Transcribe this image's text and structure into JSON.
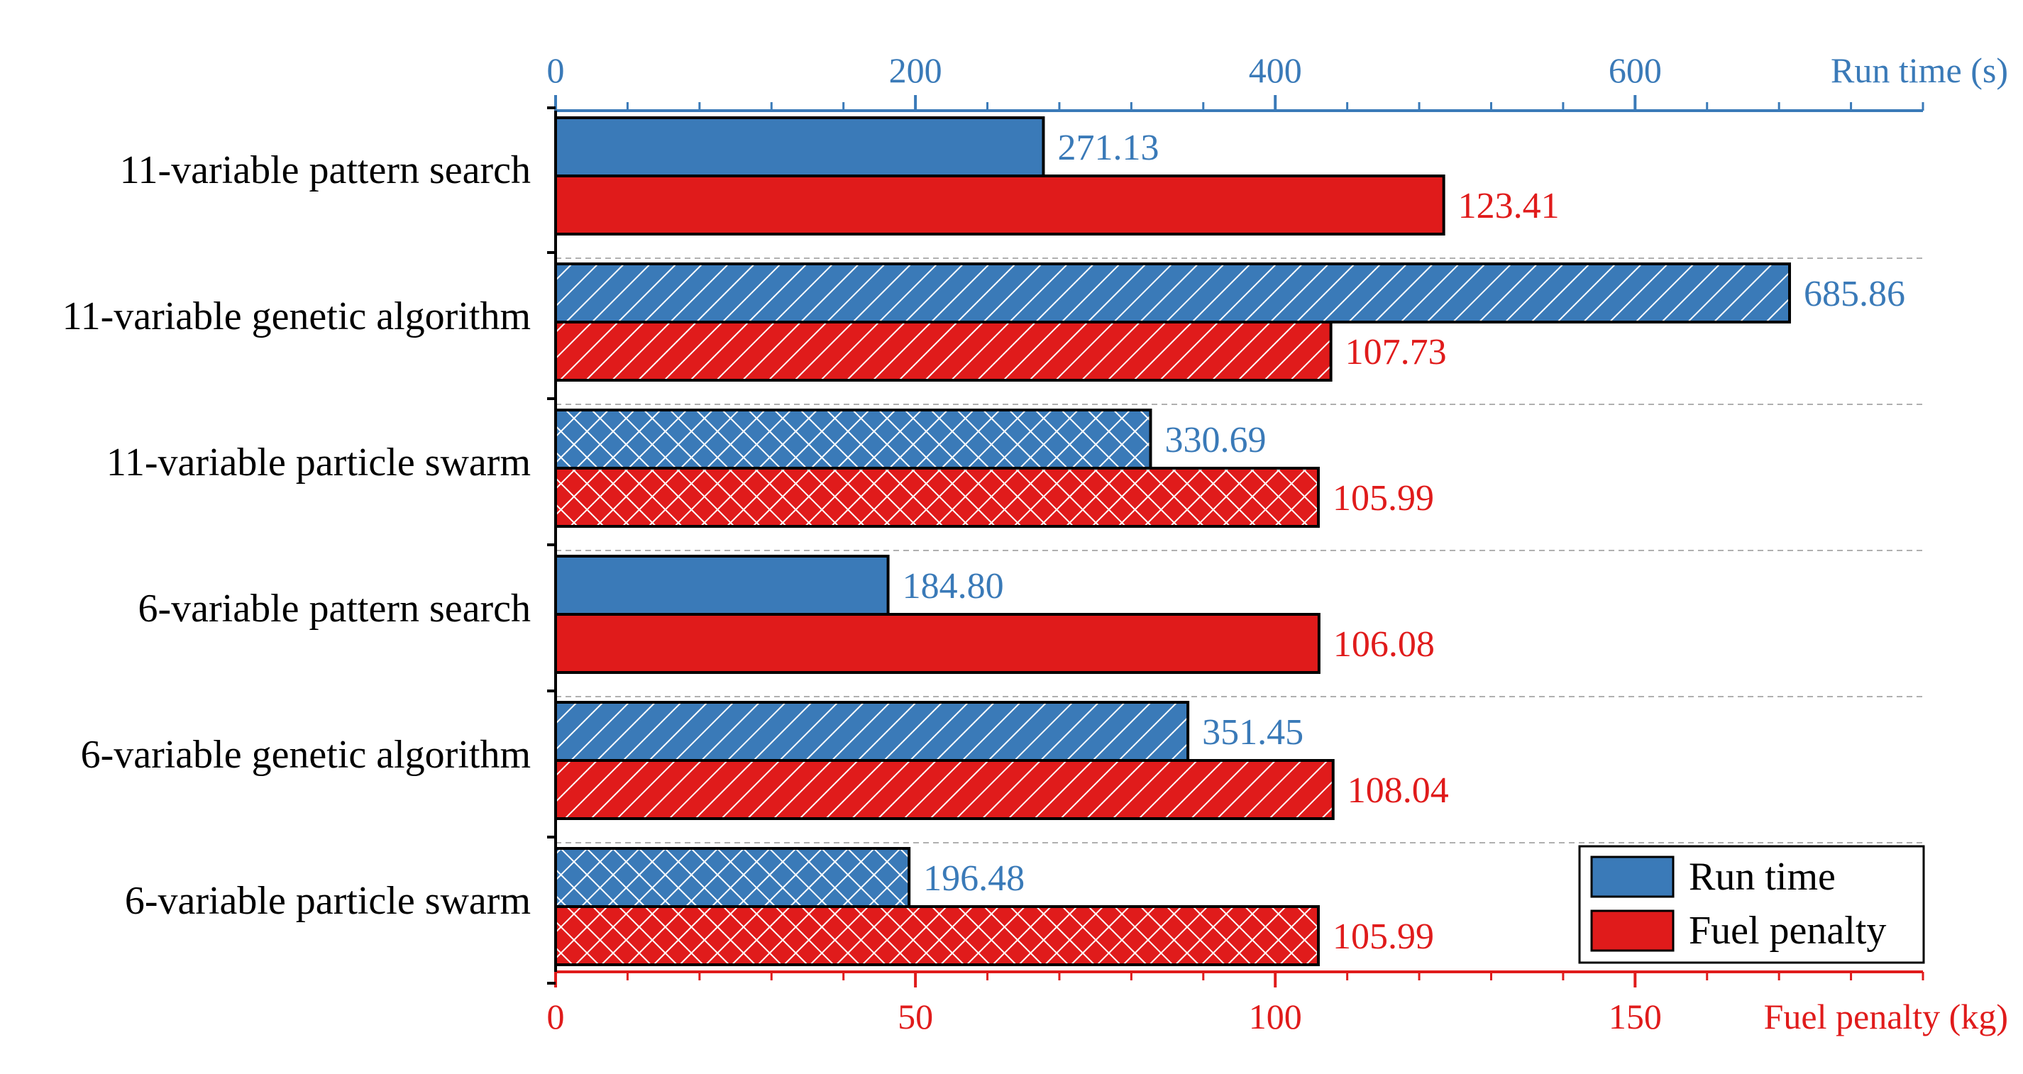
{
  "chart_data": {
    "type": "bar",
    "orientation": "horizontal",
    "categories": [
      "11-variable pattern search",
      "11-variable genetic algorithm",
      "11-variable particle swarm",
      "6-variable pattern search",
      "6-variable genetic algorithm",
      "6-variable particle swarm"
    ],
    "hatch": [
      "none",
      "diagonal",
      "cross",
      "none",
      "diagonal",
      "cross"
    ],
    "series": [
      {
        "name": "Run time",
        "axis": "top",
        "color": "#3a7ab8",
        "values": [
          271.13,
          685.86,
          330.69,
          184.8,
          351.45,
          196.48
        ],
        "labels": [
          "271.13",
          "685.86",
          "330.69",
          "184.80",
          "351.45",
          "196.48"
        ]
      },
      {
        "name": "Fuel penalty",
        "axis": "bottom",
        "color": "#e01b1b",
        "values": [
          123.41,
          107.73,
          105.99,
          106.08,
          108.04,
          105.99
        ],
        "labels": [
          "123.41",
          "107.73",
          "105.99",
          "106.08",
          "108.04",
          "105.99"
        ]
      }
    ],
    "top_axis": {
      "label": "Run time (s)",
      "ticks": [
        "0",
        "200",
        "400",
        "600"
      ],
      "tick_values": [
        0,
        200,
        400,
        600
      ],
      "range": [
        0,
        760
      ],
      "color": "#3a7ab8"
    },
    "bottom_axis": {
      "label": "Fuel penalty (kg)",
      "ticks": [
        "0",
        "50",
        "100",
        "150"
      ],
      "tick_values": [
        0,
        50,
        100,
        150
      ],
      "range": [
        0,
        190
      ],
      "color": "#e01b1b"
    },
    "grid": "dashed separators between groups",
    "legend": {
      "position": "bottom-right",
      "entries": [
        "Run time",
        "Fuel penalty"
      ]
    }
  }
}
